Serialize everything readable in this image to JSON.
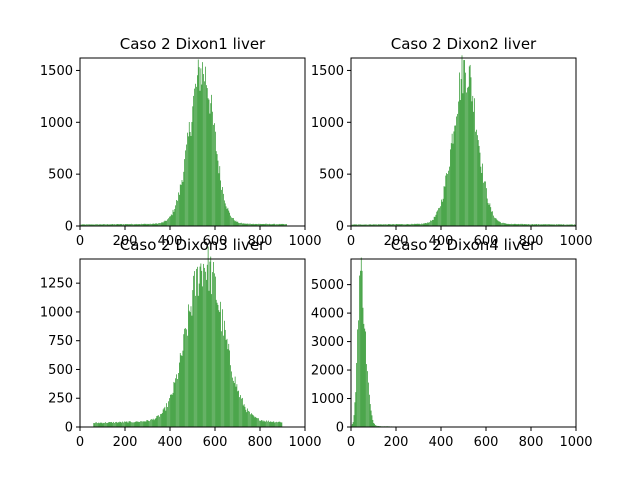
{
  "chart_data": [
    {
      "type": "bar",
      "title": "Caso 2 Dixon1 liver",
      "xlim": [
        0,
        1000
      ],
      "ylim": [
        0,
        1620
      ],
      "xticks": [
        0,
        200,
        400,
        600,
        800,
        1000
      ],
      "yticks": [
        0,
        500,
        1000,
        1500
      ],
      "bar_color": "#008000",
      "bin_width": 4,
      "distribution": {
        "peak_x": 545,
        "peak_y": 1520,
        "sigma_left": 58,
        "sigma_right": 52,
        "tail_level": 18,
        "tail_start": 0,
        "tail_end": 920
      }
    },
    {
      "type": "bar",
      "title": "Caso 2 Dixon2 liver",
      "xlim": [
        0,
        1000
      ],
      "ylim": [
        0,
        1620
      ],
      "xticks": [
        0,
        200,
        400,
        600,
        800,
        1000
      ],
      "yticks": [
        0,
        500,
        1000,
        1500
      ],
      "bar_color": "#008000",
      "bin_width": 4,
      "distribution": {
        "peak_x": 510,
        "peak_y": 1545,
        "sigma_left": 55,
        "sigma_right": 52,
        "tail_level": 16,
        "tail_start": 0,
        "tail_end": 1000
      }
    },
    {
      "type": "bar",
      "title": "Caso 2 Dixon3 liver",
      "xlim": [
        0,
        1000
      ],
      "ylim": [
        0,
        1460
      ],
      "xticks": [
        0,
        200,
        400,
        600,
        800,
        1000
      ],
      "yticks": [
        0,
        250,
        500,
        750,
        1000,
        1250
      ],
      "bar_color": "#008000",
      "bin_width": 4,
      "distribution": {
        "peak_x": 555,
        "peak_y": 1390,
        "sigma_left": 78,
        "sigma_right": 82,
        "tail_level": 45,
        "tail_start": 60,
        "tail_end": 900
      }
    },
    {
      "type": "bar",
      "title": "Caso 2 Dixon4 liver",
      "xlim": [
        0,
        1000
      ],
      "ylim": [
        0,
        5900
      ],
      "xticks": [
        0,
        200,
        400,
        600,
        800,
        1000
      ],
      "yticks": [
        0,
        1000,
        2000,
        3000,
        4000,
        5000
      ],
      "bar_color": "#008000",
      "bin_width": 4,
      "distribution": {
        "peak_x": 42,
        "peak_y": 5600,
        "sigma_left": 12,
        "sigma_right": 22,
        "tail_level": 30,
        "tail_start": 0,
        "tail_end": 200
      }
    }
  ]
}
